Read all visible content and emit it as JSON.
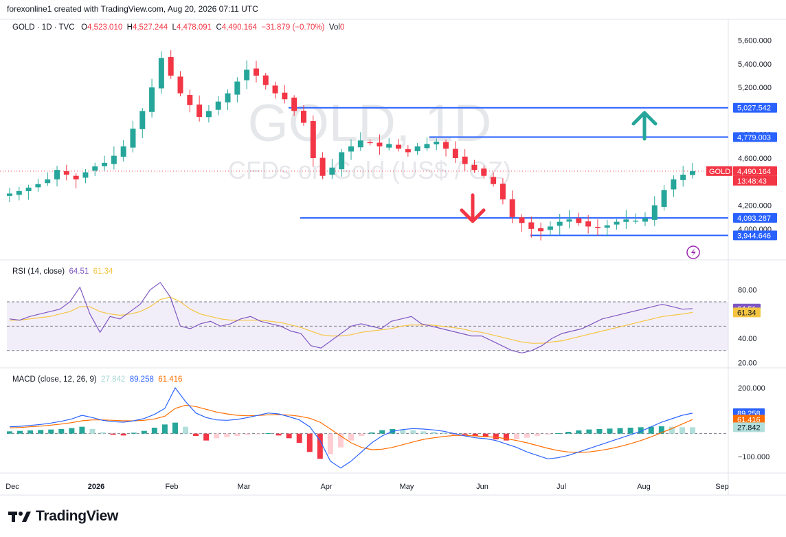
{
  "header": {
    "attribution": "forexonline1 created with TradingView.com, Aug 20, 2026 07:11 UTC"
  },
  "legend": {
    "symbol": "GOLD · 1D · TVC",
    "o_label": "O",
    "o": "4,523.010",
    "h_label": "H",
    "h": "4,527.244",
    "l_label": "L",
    "l": "4,478.091",
    "c_label": "C",
    "c": "4,490.164",
    "change": "−31.879 (−0.70%)",
    "vol_label": "Vol",
    "vol": "0"
  },
  "watermark": {
    "line1": "GOLD, 1D",
    "line2": "CFDs on Gold (US$ / OZ)"
  },
  "colors": {
    "up": "#26a69a",
    "down": "#f23645",
    "level": "#2962ff",
    "rsi": "#7e57c2",
    "rsi_ma": "#f5c542",
    "macd": "#2962ff",
    "signal": "#ff6d00"
  },
  "chart_data": [
    {
      "type": "candlestick",
      "symbol": "GOLD",
      "x": [
        "Dec",
        "2026",
        "Feb",
        "Mar",
        "Apr",
        "May",
        "Jun",
        "Jul",
        "Aug",
        "Sep"
      ],
      "y_ticks": [
        "5,600.000",
        "5,400.000",
        "5,200.000",
        "4,800.000",
        "4,600.000",
        "4,200.000",
        "4,000.000"
      ],
      "ylim": [
        3900,
        5650
      ],
      "close_series": [
        4300,
        4320,
        4350,
        4380,
        4420,
        4500,
        4460,
        4420,
        4480,
        4530,
        4560,
        4620,
        4700,
        4850,
        5000,
        5200,
        5450,
        5300,
        5150,
        5050,
        4950,
        5000,
        5080,
        5150,
        5250,
        5350,
        5300,
        5220,
        5150,
        5100,
        5000,
        4900,
        4600,
        4450,
        4520,
        4650,
        4700,
        4750,
        4730,
        4700,
        4720,
        4680,
        4650,
        4700,
        4720,
        4740,
        4680,
        4600,
        4550,
        4500,
        4450,
        4380,
        4250,
        4100,
        4050,
        4000,
        3980,
        4020,
        4060,
        4080,
        4050,
        4020,
        4010,
        4030,
        4060,
        4080,
        4070,
        4090,
        4200,
        4330,
        4420,
        4460,
        4490
      ],
      "levels": [
        {
          "label": "5,027.542",
          "value": 5027.542,
          "color": "#2962ff"
        },
        {
          "label": "4,779.003",
          "value": 4779.003,
          "color": "#2962ff"
        },
        {
          "label": "4,093.287",
          "value": 4093.287,
          "color": "#2962ff"
        },
        {
          "label": "3,944.646",
          "value": 3944.646,
          "color": "#2962ff"
        }
      ],
      "last_price": {
        "label": "4,490.164",
        "value": 4490.164,
        "symbol_tag": "GOLD",
        "countdown": "13:48:43"
      },
      "annotations": [
        {
          "type": "arrow-up",
          "color": "#26a69a",
          "value": 4880
        },
        {
          "type": "arrow-down",
          "color": "#f23645",
          "value": 4170
        }
      ]
    },
    {
      "type": "line",
      "title": "RSI (14, close)",
      "y_ticks": [
        "80.00",
        "40.00",
        "20.00"
      ],
      "ylim": [
        18,
        100
      ],
      "band": [
        30,
        70
      ],
      "midline": 50,
      "series": [
        {
          "name": "RSI",
          "value_label": "64.51",
          "values": [
            56,
            55,
            58,
            60,
            62,
            64,
            70,
            82,
            60,
            45,
            58,
            56,
            62,
            68,
            80,
            86,
            74,
            50,
            48,
            52,
            54,
            50,
            52,
            56,
            58,
            54,
            52,
            50,
            46,
            44,
            34,
            32,
            38,
            44,
            50,
            52,
            50,
            48,
            54,
            56,
            58,
            52,
            50,
            48,
            46,
            44,
            42,
            42,
            38,
            34,
            30,
            28,
            30,
            34,
            40,
            44,
            46,
            48,
            52,
            56,
            58,
            60,
            62,
            64,
            66,
            68,
            66,
            64,
            64.51
          ]
        },
        {
          "name": "RSI MA",
          "value_label": "61.34",
          "values": [
            55,
            55,
            56,
            57,
            58,
            60,
            62,
            66,
            66,
            62,
            60,
            59,
            60,
            62,
            66,
            72,
            74,
            70,
            64,
            60,
            58,
            56,
            55,
            55,
            55,
            55,
            54,
            53,
            51,
            49,
            46,
            43,
            42,
            42,
            43,
            45,
            46,
            47,
            48,
            50,
            51,
            51,
            51,
            50,
            49,
            48,
            46,
            45,
            43,
            41,
            39,
            37,
            36,
            36,
            37,
            38,
            40,
            42,
            44,
            46,
            48,
            50,
            52,
            54,
            56,
            58,
            59,
            60,
            61.34
          ]
        }
      ]
    },
    {
      "type": "line",
      "title": "MACD (close, 12, 26, 9)",
      "y_ticks": [
        "200.000",
        "−100.000"
      ],
      "ylim": [
        -160,
        260
      ],
      "zero": 0,
      "series": [
        {
          "name": "Histogram",
          "value_label": "27.842",
          "values": [
            10,
            12,
            14,
            16,
            18,
            20,
            24,
            30,
            20,
            6,
            -5,
            -8,
            4,
            12,
            26,
            40,
            48,
            30,
            -10,
            -30,
            -20,
            -15,
            -10,
            -6,
            -2,
            2,
            -8,
            -20,
            -40,
            -80,
            -110,
            -90,
            -60,
            -30,
            -10,
            5,
            15,
            20,
            18,
            15,
            10,
            8,
            5,
            -2,
            -5,
            -10,
            -15,
            -25,
            -30,
            -25,
            -18,
            -10,
            -4,
            2,
            8,
            14,
            18,
            20,
            22,
            24,
            26,
            28,
            30,
            32,
            30,
            28,
            27.842
          ]
        },
        {
          "name": "MACD",
          "value_label": "89.258",
          "values": [
            30,
            32,
            36,
            40,
            46,
            54,
            64,
            80,
            70,
            58,
            52,
            50,
            56,
            66,
            84,
            110,
            200,
            140,
            90,
            70,
            60,
            58,
            62,
            70,
            80,
            90,
            86,
            74,
            60,
            30,
            -30,
            -120,
            -150,
            -120,
            -80,
            -40,
            -10,
            10,
            18,
            22,
            20,
            16,
            10,
            0,
            -10,
            -18,
            -22,
            -30,
            -45,
            -60,
            -80,
            -95,
            -110,
            -105,
            -95,
            -80,
            -65,
            -50,
            -35,
            -20,
            -5,
            10,
            30,
            50,
            65,
            80,
            89.258
          ]
        },
        {
          "name": "Signal",
          "value_label": "61.416",
          "values": [
            25,
            27,
            30,
            33,
            37,
            42,
            48,
            56,
            60,
            60,
            58,
            56,
            56,
            58,
            64,
            76,
            110,
            124,
            118,
            106,
            94,
            86,
            80,
            78,
            79,
            82,
            83,
            81,
            76,
            67,
            50,
            20,
            -10,
            -40,
            -60,
            -70,
            -68,
            -60,
            -48,
            -36,
            -25,
            -18,
            -12,
            -8,
            -8,
            -10,
            -13,
            -16,
            -22,
            -30,
            -40,
            -52,
            -64,
            -74,
            -80,
            -82,
            -80,
            -74,
            -66,
            -56,
            -44,
            -30,
            -14,
            4,
            22,
            42,
            61.416
          ]
        }
      ]
    }
  ],
  "xaxis": {
    "labels": [
      "Dec",
      "2026",
      "Feb",
      "Mar",
      "Apr",
      "May",
      "Jun",
      "Jul",
      "Aug",
      "Sep"
    ]
  },
  "branding": {
    "logo_text": "TradingView"
  }
}
